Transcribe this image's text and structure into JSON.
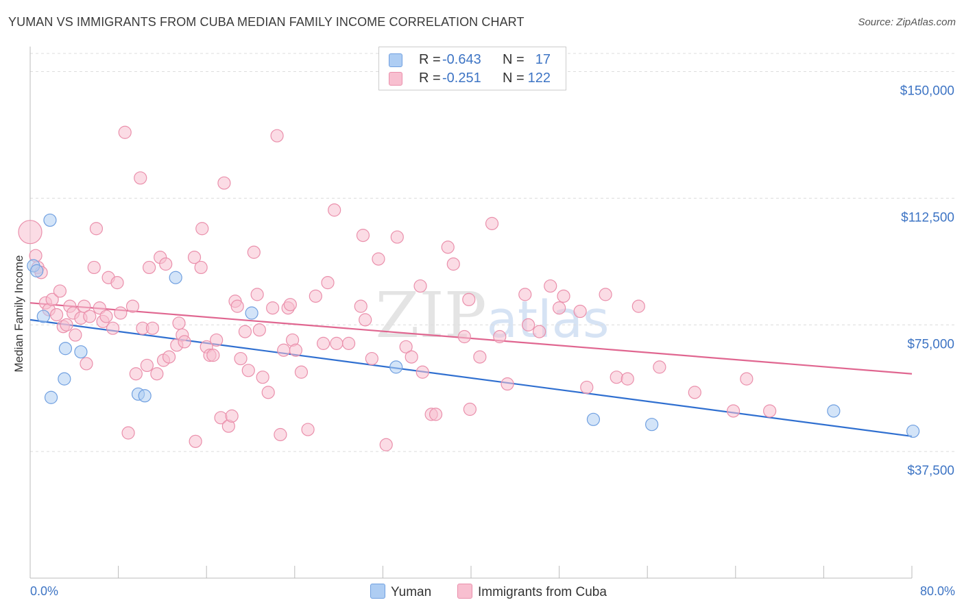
{
  "title": "YUMAN VS IMMIGRANTS FROM CUBA MEDIAN FAMILY INCOME CORRELATION CHART",
  "source": "Source: ZipAtlas.com",
  "watermark": "ZIPatlas",
  "colors": {
    "yuman_fill": "#aecdf3",
    "yuman_stroke": "#6f9fe0",
    "yuman_line": "#2f6fd0",
    "cuba_fill": "#f8bfd0",
    "cuba_stroke": "#ea8fab",
    "cuba_line": "#e06690",
    "tick_text": "#3d74c4",
    "grid": "#dcdcdc"
  },
  "legend": {
    "r_label": "R =",
    "n_label": "N =",
    "rows": [
      {
        "name": "Yuman",
        "r": "-0.643",
        "n": "17"
      },
      {
        "name": "Immigrants from Cuba",
        "r": "-0.251",
        "n": "122"
      }
    ]
  },
  "bottom_legend": [
    "Yuman",
    "Immigrants from Cuba"
  ],
  "chart_data": {
    "type": "scatter",
    "xlabel": "",
    "ylabel": "Median Family Income",
    "xlim": [
      0,
      80
    ],
    "ylim": [
      0,
      157000
    ],
    "x_tick_labels": [
      "0.0%",
      "80.0%"
    ],
    "y_ticks": [
      37500,
      75000,
      112500,
      150000
    ],
    "y_tick_labels": [
      "$37,500",
      "$75,000",
      "$112,500",
      "$150,000"
    ],
    "series": [
      {
        "name": "Yuman",
        "r": -0.643,
        "n": 17,
        "trend": {
          "x": [
            0,
            80
          ],
          "y": [
            76500,
            42000
          ]
        },
        "points": [
          {
            "x": 0.3,
            "y": 92500
          },
          {
            "x": 0.6,
            "y": 91000
          },
          {
            "x": 1.2,
            "y": 77500
          },
          {
            "x": 1.8,
            "y": 106000
          },
          {
            "x": 1.9,
            "y": 53500
          },
          {
            "x": 3.2,
            "y": 68000
          },
          {
            "x": 3.1,
            "y": 59000
          },
          {
            "x": 4.6,
            "y": 67000
          },
          {
            "x": 9.8,
            "y": 54500
          },
          {
            "x": 10.4,
            "y": 54000
          },
          {
            "x": 13.2,
            "y": 89000
          },
          {
            "x": 20.1,
            "y": 78500
          },
          {
            "x": 33.2,
            "y": 62500
          },
          {
            "x": 51.1,
            "y": 47000
          },
          {
            "x": 56.4,
            "y": 45500
          },
          {
            "x": 72.9,
            "y": 49500
          },
          {
            "x": 80.1,
            "y": 43500
          }
        ]
      },
      {
        "name": "Immigrants from Cuba",
        "r": -0.251,
        "n": 122,
        "trend": {
          "x": [
            0,
            80
          ],
          "y": [
            81500,
            60500
          ]
        },
        "points": [
          {
            "x": 0.0,
            "y": 102500,
            "size": "large"
          },
          {
            "x": 0.5,
            "y": 95500
          },
          {
            "x": 0.7,
            "y": 92000
          },
          {
            "x": 1.0,
            "y": 90500
          },
          {
            "x": 1.4,
            "y": 81500
          },
          {
            "x": 1.7,
            "y": 79500
          },
          {
            "x": 2.0,
            "y": 82500
          },
          {
            "x": 2.4,
            "y": 78000
          },
          {
            "x": 2.7,
            "y": 85000
          },
          {
            "x": 3.0,
            "y": 74500
          },
          {
            "x": 3.3,
            "y": 75000
          },
          {
            "x": 3.6,
            "y": 80500
          },
          {
            "x": 3.9,
            "y": 78500
          },
          {
            "x": 4.1,
            "y": 72000
          },
          {
            "x": 4.6,
            "y": 77000
          },
          {
            "x": 4.9,
            "y": 80500
          },
          {
            "x": 5.1,
            "y": 63500
          },
          {
            "x": 5.4,
            "y": 77500
          },
          {
            "x": 5.8,
            "y": 92000
          },
          {
            "x": 6.0,
            "y": 103500
          },
          {
            "x": 6.3,
            "y": 80000
          },
          {
            "x": 6.6,
            "y": 76000
          },
          {
            "x": 6.9,
            "y": 77500
          },
          {
            "x": 7.1,
            "y": 89000
          },
          {
            "x": 7.5,
            "y": 74000
          },
          {
            "x": 7.9,
            "y": 87500
          },
          {
            "x": 8.2,
            "y": 78500
          },
          {
            "x": 8.6,
            "y": 132000
          },
          {
            "x": 8.9,
            "y": 43000
          },
          {
            "x": 9.3,
            "y": 80500
          },
          {
            "x": 9.6,
            "y": 60500
          },
          {
            "x": 10.0,
            "y": 118500
          },
          {
            "x": 10.2,
            "y": 74000
          },
          {
            "x": 10.6,
            "y": 63000
          },
          {
            "x": 10.8,
            "y": 92000
          },
          {
            "x": 11.1,
            "y": 74000
          },
          {
            "x": 11.5,
            "y": 60500
          },
          {
            "x": 11.8,
            "y": 95000
          },
          {
            "x": 12.1,
            "y": 64500
          },
          {
            "x": 12.3,
            "y": 93000
          },
          {
            "x": 12.6,
            "y": 65500
          },
          {
            "x": 13.3,
            "y": 69000
          },
          {
            "x": 13.5,
            "y": 75500
          },
          {
            "x": 13.8,
            "y": 72000
          },
          {
            "x": 14.0,
            "y": 70000
          },
          {
            "x": 15.0,
            "y": 40500
          },
          {
            "x": 14.9,
            "y": 95000
          },
          {
            "x": 15.5,
            "y": 92000
          },
          {
            "x": 15.6,
            "y": 103500
          },
          {
            "x": 16.0,
            "y": 68500
          },
          {
            "x": 16.3,
            "y": 66000
          },
          {
            "x": 16.6,
            "y": 66000
          },
          {
            "x": 16.9,
            "y": 70500
          },
          {
            "x": 17.3,
            "y": 47500
          },
          {
            "x": 17.6,
            "y": 117000
          },
          {
            "x": 18.0,
            "y": 45000
          },
          {
            "x": 18.3,
            "y": 48000
          },
          {
            "x": 18.6,
            "y": 82000
          },
          {
            "x": 18.8,
            "y": 80500
          },
          {
            "x": 19.1,
            "y": 65000
          },
          {
            "x": 19.5,
            "y": 73000
          },
          {
            "x": 19.8,
            "y": 61500
          },
          {
            "x": 20.3,
            "y": 96500
          },
          {
            "x": 20.6,
            "y": 84000
          },
          {
            "x": 20.8,
            "y": 73500
          },
          {
            "x": 21.1,
            "y": 59500
          },
          {
            "x": 21.6,
            "y": 55000
          },
          {
            "x": 22.0,
            "y": 80000
          },
          {
            "x": 22.4,
            "y": 131000
          },
          {
            "x": 22.7,
            "y": 42500
          },
          {
            "x": 23.0,
            "y": 67500
          },
          {
            "x": 23.4,
            "y": 80000
          },
          {
            "x": 23.6,
            "y": 81000
          },
          {
            "x": 23.8,
            "y": 70500
          },
          {
            "x": 24.1,
            "y": 67500
          },
          {
            "x": 24.6,
            "y": 61000
          },
          {
            "x": 25.2,
            "y": 44000
          },
          {
            "x": 25.9,
            "y": 83500
          },
          {
            "x": 26.6,
            "y": 69500
          },
          {
            "x": 27.0,
            "y": 87500
          },
          {
            "x": 27.6,
            "y": 109000
          },
          {
            "x": 27.8,
            "y": 69500
          },
          {
            "x": 28.9,
            "y": 69500
          },
          {
            "x": 30.0,
            "y": 80500
          },
          {
            "x": 30.2,
            "y": 101500
          },
          {
            "x": 30.4,
            "y": 76500
          },
          {
            "x": 31.0,
            "y": 65000
          },
          {
            "x": 31.6,
            "y": 94500
          },
          {
            "x": 32.3,
            "y": 39500
          },
          {
            "x": 33.3,
            "y": 101000
          },
          {
            "x": 34.1,
            "y": 68500
          },
          {
            "x": 34.6,
            "y": 65500
          },
          {
            "x": 35.4,
            "y": 86500
          },
          {
            "x": 35.6,
            "y": 61000
          },
          {
            "x": 36.4,
            "y": 48500
          },
          {
            "x": 36.8,
            "y": 48500
          },
          {
            "x": 37.9,
            "y": 98000
          },
          {
            "x": 38.4,
            "y": 93000
          },
          {
            "x": 39.4,
            "y": 71500
          },
          {
            "x": 39.8,
            "y": 82500
          },
          {
            "x": 39.9,
            "y": 50000
          },
          {
            "x": 40.8,
            "y": 65500
          },
          {
            "x": 41.9,
            "y": 105000
          },
          {
            "x": 42.6,
            "y": 71500
          },
          {
            "x": 43.3,
            "y": 57500
          },
          {
            "x": 45.2,
            "y": 75000
          },
          {
            "x": 44.9,
            "y": 84000
          },
          {
            "x": 46.2,
            "y": 73000
          },
          {
            "x": 47.2,
            "y": 86500
          },
          {
            "x": 48.0,
            "y": 80000
          },
          {
            "x": 48.4,
            "y": 83500
          },
          {
            "x": 49.9,
            "y": 79000
          },
          {
            "x": 50.5,
            "y": 56500
          },
          {
            "x": 52.2,
            "y": 84000
          },
          {
            "x": 53.2,
            "y": 59500
          },
          {
            "x": 54.2,
            "y": 59000
          },
          {
            "x": 55.2,
            "y": 80500
          },
          {
            "x": 57.1,
            "y": 62500
          },
          {
            "x": 60.3,
            "y": 55000
          },
          {
            "x": 63.8,
            "y": 49500
          },
          {
            "x": 65.0,
            "y": 59000
          },
          {
            "x": 67.1,
            "y": 49500
          }
        ]
      }
    ]
  }
}
